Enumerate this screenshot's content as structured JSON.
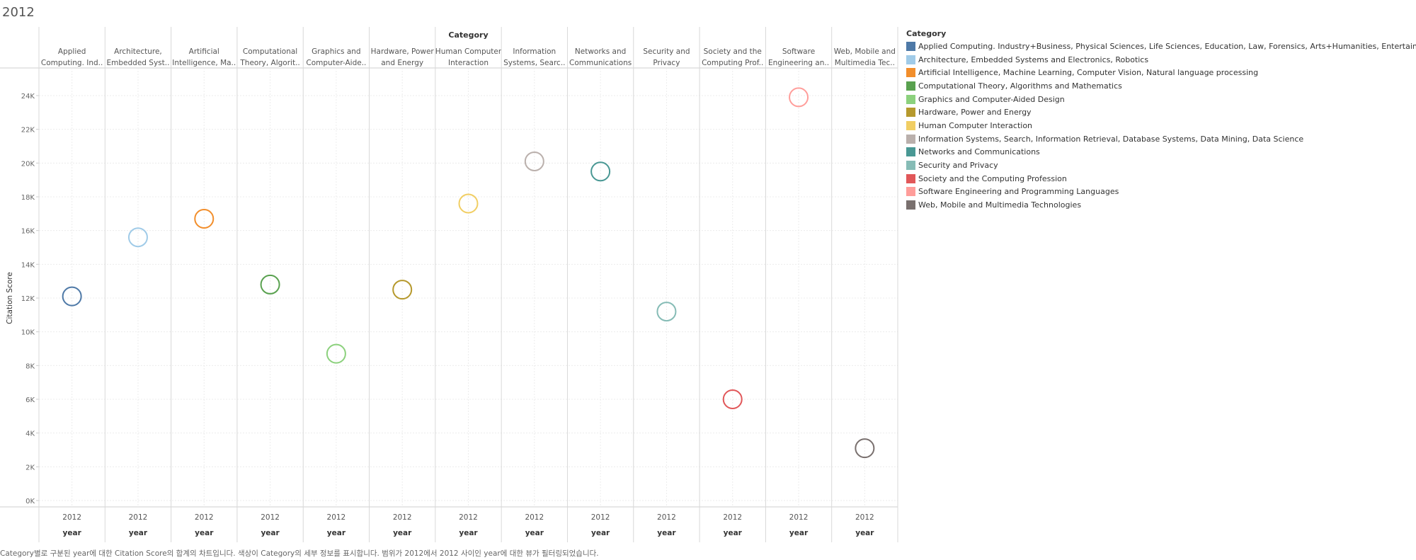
{
  "page_title": "2012",
  "caption": "Category별로 구분된 year에 대한 Citation Score의 합계의 차트입니다. 색상이 Category의 세부 정보를 표시합니다. 범위가 2012에서 2012 사이인 year에 대한 뷰가 필터링되었습니다.",
  "legend": {
    "title": "Category",
    "items": [
      {
        "label": "Applied Computing. Industry+Business, Physical Sciences, Life Sciences, Education, Law, Forensics, Arts+Humanities, Entertainment",
        "color": "#4e79a7"
      },
      {
        "label": "Architecture, Embedded Systems and Electronics, Robotics",
        "color": "#a0cbe8"
      },
      {
        "label": "Artificial Intelligence, Machine Learning, Computer Vision, Natural language processing",
        "color": "#f28e2b"
      },
      {
        "label": "Computational Theory, Algorithms and Mathematics",
        "color": "#59a14f"
      },
      {
        "label": "Graphics and Computer-Aided Design",
        "color": "#8cd17d"
      },
      {
        "label": "Hardware, Power and Energy",
        "color": "#b6992d"
      },
      {
        "label": "Human Computer Interaction",
        "color": "#f1ce63"
      },
      {
        "label": "Information Systems, Search, Information Retrieval, Database Systems, Data Mining, Data Science",
        "color": "#bab0ac"
      },
      {
        "label": "Networks and Communications",
        "color": "#499894"
      },
      {
        "label": "Security and Privacy",
        "color": "#86bcb6"
      },
      {
        "label": "Society and the Computing Profession",
        "color": "#e15759"
      },
      {
        "label": "Software Engineering and Programming Languages",
        "color": "#ff9d9a"
      },
      {
        "label": "Web, Mobile and Multimedia Technologies",
        "color": "#79706e"
      }
    ]
  },
  "chart_data": {
    "type": "scatter",
    "column_header_title": "Category",
    "ylabel": "Citation Score",
    "xlabel": "year",
    "ylim": [
      0,
      25500
    ],
    "yticks": [
      0,
      2000,
      4000,
      6000,
      8000,
      10000,
      12000,
      14000,
      16000,
      18000,
      20000,
      22000,
      24000
    ],
    "ytick_labels": [
      "0K",
      "2K",
      "4K",
      "6K",
      "8K",
      "10K",
      "12K",
      "14K",
      "16K",
      "18K",
      "20K",
      "22K",
      "24K"
    ],
    "grid": true,
    "legend_position": "right",
    "columns": [
      {
        "header": [
          "Applied",
          "Computing. Ind.."
        ],
        "x": "2012",
        "y": 12100,
        "color": "#4e79a7"
      },
      {
        "header": [
          "Architecture,",
          "Embedded Syst.."
        ],
        "x": "2012",
        "y": 15600,
        "color": "#a0cbe8"
      },
      {
        "header": [
          "Artificial",
          "Intelligence, Ma.."
        ],
        "x": "2012",
        "y": 16700,
        "color": "#f28e2b"
      },
      {
        "header": [
          "Computational",
          "Theory, Algorit.."
        ],
        "x": "2012",
        "y": 12800,
        "color": "#59a14f"
      },
      {
        "header": [
          "Graphics and",
          "Computer-Aide.."
        ],
        "x": "2012",
        "y": 8700,
        "color": "#8cd17d"
      },
      {
        "header": [
          "Hardware, Power",
          "and Energy"
        ],
        "x": "2012",
        "y": 12500,
        "color": "#b6992d"
      },
      {
        "header": [
          "Human Computer",
          "Interaction"
        ],
        "x": "2012",
        "y": 17600,
        "color": "#f1ce63"
      },
      {
        "header": [
          "Information",
          "Systems, Searc.."
        ],
        "x": "2012",
        "y": 20100,
        "color": "#bab0ac"
      },
      {
        "header": [
          "Networks and",
          "Communications"
        ],
        "x": "2012",
        "y": 19500,
        "color": "#499894"
      },
      {
        "header": [
          "Security and",
          "Privacy"
        ],
        "x": "2012",
        "y": 11200,
        "color": "#86bcb6"
      },
      {
        "header": [
          "Society and the",
          "Computing Prof.."
        ],
        "x": "2012",
        "y": 6000,
        "color": "#e15759"
      },
      {
        "header": [
          "Software",
          "Engineering an.."
        ],
        "x": "2012",
        "y": 23900,
        "color": "#ff9d9a"
      },
      {
        "header": [
          "Web, Mobile and",
          "Multimedia Tec.."
        ],
        "x": "2012",
        "y": 3100,
        "color": "#79706e"
      }
    ]
  }
}
